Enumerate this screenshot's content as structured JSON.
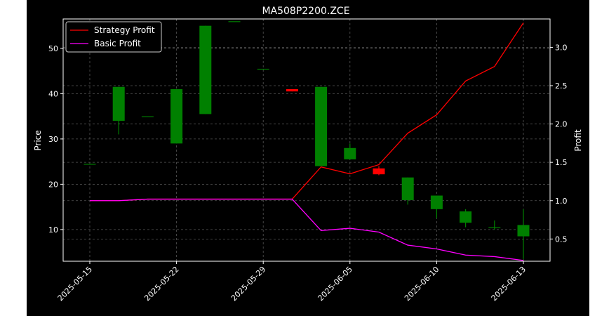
{
  "chart_data": {
    "type": "candlestick",
    "title": "MA508P2200.ZCE",
    "xlabel": "",
    "ylabel_left": "Price",
    "ylabel_right": "Profit",
    "grid": true,
    "legend_position": "top-left",
    "xticks": [
      "2025-05-15",
      "2025-05-22",
      "2025-05-29",
      "2025-06-05",
      "2025-06-10",
      "2025-06-13"
    ],
    "yticks_left": [
      10,
      20,
      30,
      40,
      50
    ],
    "yticks_right": [
      "0.5",
      "1.0",
      "1.5",
      "2.0",
      "2.5",
      "3.0"
    ],
    "ylim_left": [
      3,
      56.5
    ],
    "ylim_right": [
      0.21,
      3.37
    ],
    "colors": {
      "up": "#008000",
      "down": "#ff0000",
      "strategy": "#ff0000",
      "basic": "#ff00ff"
    },
    "candles": [
      {
        "open": 24.5,
        "high": 24.5,
        "low": 24.5,
        "close": 24.5
      },
      {
        "open": 34.0,
        "high": 41.5,
        "low": 31.0,
        "close": 41.5
      },
      {
        "open": 35.0,
        "high": 35.0,
        "low": 35.0,
        "close": 35.0
      },
      {
        "open": 29.0,
        "high": 41.0,
        "low": 29.0,
        "close": 41.0
      },
      {
        "open": 35.5,
        "high": 55.0,
        "low": 35.5,
        "close": 55.0
      },
      {
        "open": 56.0,
        "high": 56.0,
        "low": 56.0,
        "close": 56.0
      },
      {
        "open": 45.5,
        "high": 45.5,
        "low": 45.5,
        "close": 45.5
      },
      {
        "open": 41.0,
        "high": 41.0,
        "low": 40.5,
        "close": 40.5
      },
      {
        "open": 24.0,
        "high": 41.5,
        "low": 24.0,
        "close": 41.5
      },
      {
        "open": 25.5,
        "high": 29.0,
        "low": 25.5,
        "close": 28.0
      },
      {
        "open": 23.5,
        "high": 24.0,
        "low": 22.0,
        "close": 22.2
      },
      {
        "open": 16.5,
        "high": 21.5,
        "low": 15.5,
        "close": 21.5
      },
      {
        "open": 14.5,
        "high": 17.5,
        "low": 12.5,
        "close": 17.5
      },
      {
        "open": 11.5,
        "high": 14.5,
        "low": 10.5,
        "close": 14.0
      },
      {
        "open": 10.5,
        "high": 12.0,
        "low": 10.0,
        "close": 10.5
      },
      {
        "open": 8.5,
        "high": 14.5,
        "low": 3.5,
        "close": 11.0
      }
    ],
    "series": [
      {
        "name": "Strategy Profit",
        "values": [
          1.0,
          1.0,
          1.02,
          1.02,
          1.02,
          1.02,
          1.02,
          1.02,
          1.44,
          1.35,
          1.47,
          1.88,
          2.12,
          2.56,
          2.75,
          3.32
        ]
      },
      {
        "name": "Basic Profit",
        "values": [
          1.0,
          1.0,
          1.02,
          1.02,
          1.02,
          1.02,
          1.02,
          1.02,
          0.61,
          0.64,
          0.59,
          0.42,
          0.37,
          0.29,
          0.27,
          0.22
        ]
      }
    ]
  }
}
